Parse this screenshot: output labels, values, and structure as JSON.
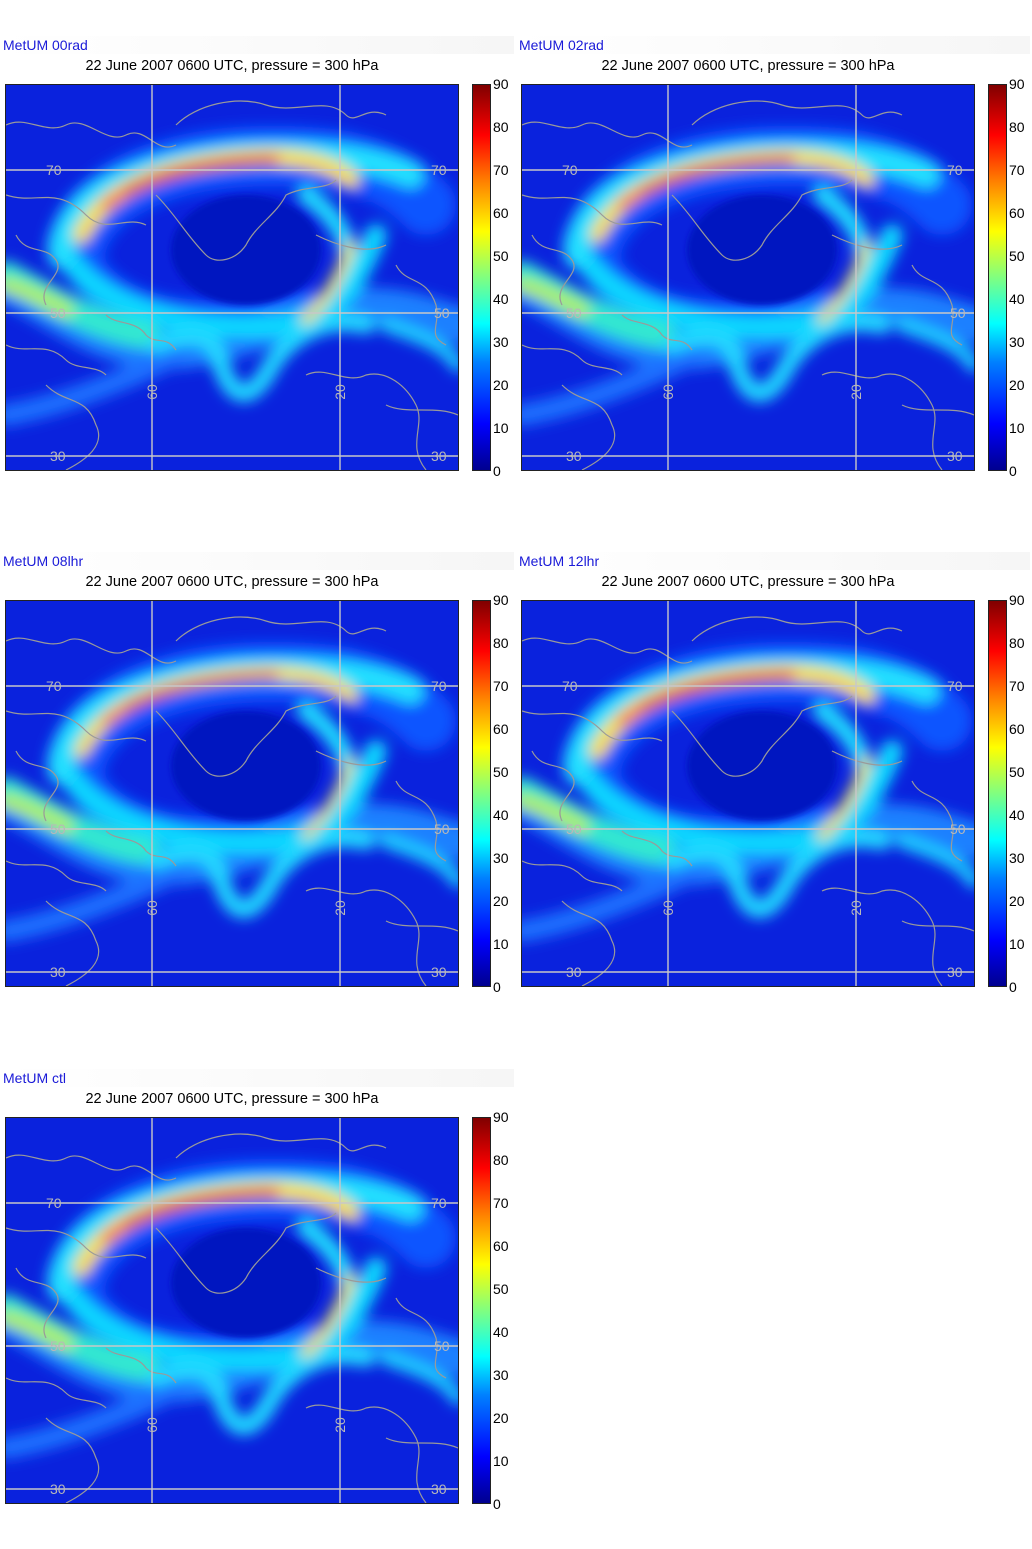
{
  "subtitle": "22 June 2007 0600 UTC, pressure = 300 hPa",
  "panels": [
    {
      "model": "MetUM 00rad",
      "intensity": 1.0
    },
    {
      "model": "MetUM 02rad",
      "intensity": 0.9
    },
    {
      "model": "MetUM 08lhr",
      "intensity": 0.82
    },
    {
      "model": "MetUM 12lhr",
      "intensity": 1.0
    },
    {
      "model": "MetUM ctl",
      "intensity": 1.0
    }
  ],
  "colorbar": {
    "min": 0,
    "max": 90,
    "ticks": [
      "90",
      "80",
      "70",
      "60",
      "50",
      "40",
      "30",
      "20",
      "10",
      "0"
    ]
  },
  "gridlabels": {
    "lat70": "70",
    "lat50": "50",
    "lat30": "30",
    "lon60": "60",
    "lon20": "20"
  },
  "colors": {
    "low": "#00008f",
    "mid": "#00ffff",
    "high": "#800000",
    "coast": "#9a9a9a",
    "grid": "#c8c8c8"
  },
  "chart_data": [
    {
      "type": "heatmap",
      "title": "MetUM 00rad",
      "subtitle": "22 June 2007 0600 UTC, pressure = 300 hPa",
      "colorbar_range": [
        0,
        90
      ],
      "colormap": "jet"
    },
    {
      "type": "heatmap",
      "title": "MetUM 02rad",
      "subtitle": "22 June 2007 0600 UTC, pressure = 300 hPa",
      "colorbar_range": [
        0,
        90
      ],
      "colormap": "jet"
    },
    {
      "type": "heatmap",
      "title": "MetUM 08lhr",
      "subtitle": "22 June 2007 0600 UTC, pressure = 300 hPa",
      "colorbar_range": [
        0,
        90
      ],
      "colormap": "jet"
    },
    {
      "type": "heatmap",
      "title": "MetUM 12lhr",
      "subtitle": "22 June 2007 0600 UTC, pressure = 300 hPa",
      "colorbar_range": [
        0,
        90
      ],
      "colormap": "jet"
    },
    {
      "type": "heatmap",
      "title": "MetUM ctl",
      "subtitle": "22 June 2007 0600 UTC, pressure = 300 hPa",
      "colorbar_range": [
        0,
        90
      ],
      "colormap": "jet"
    }
  ]
}
